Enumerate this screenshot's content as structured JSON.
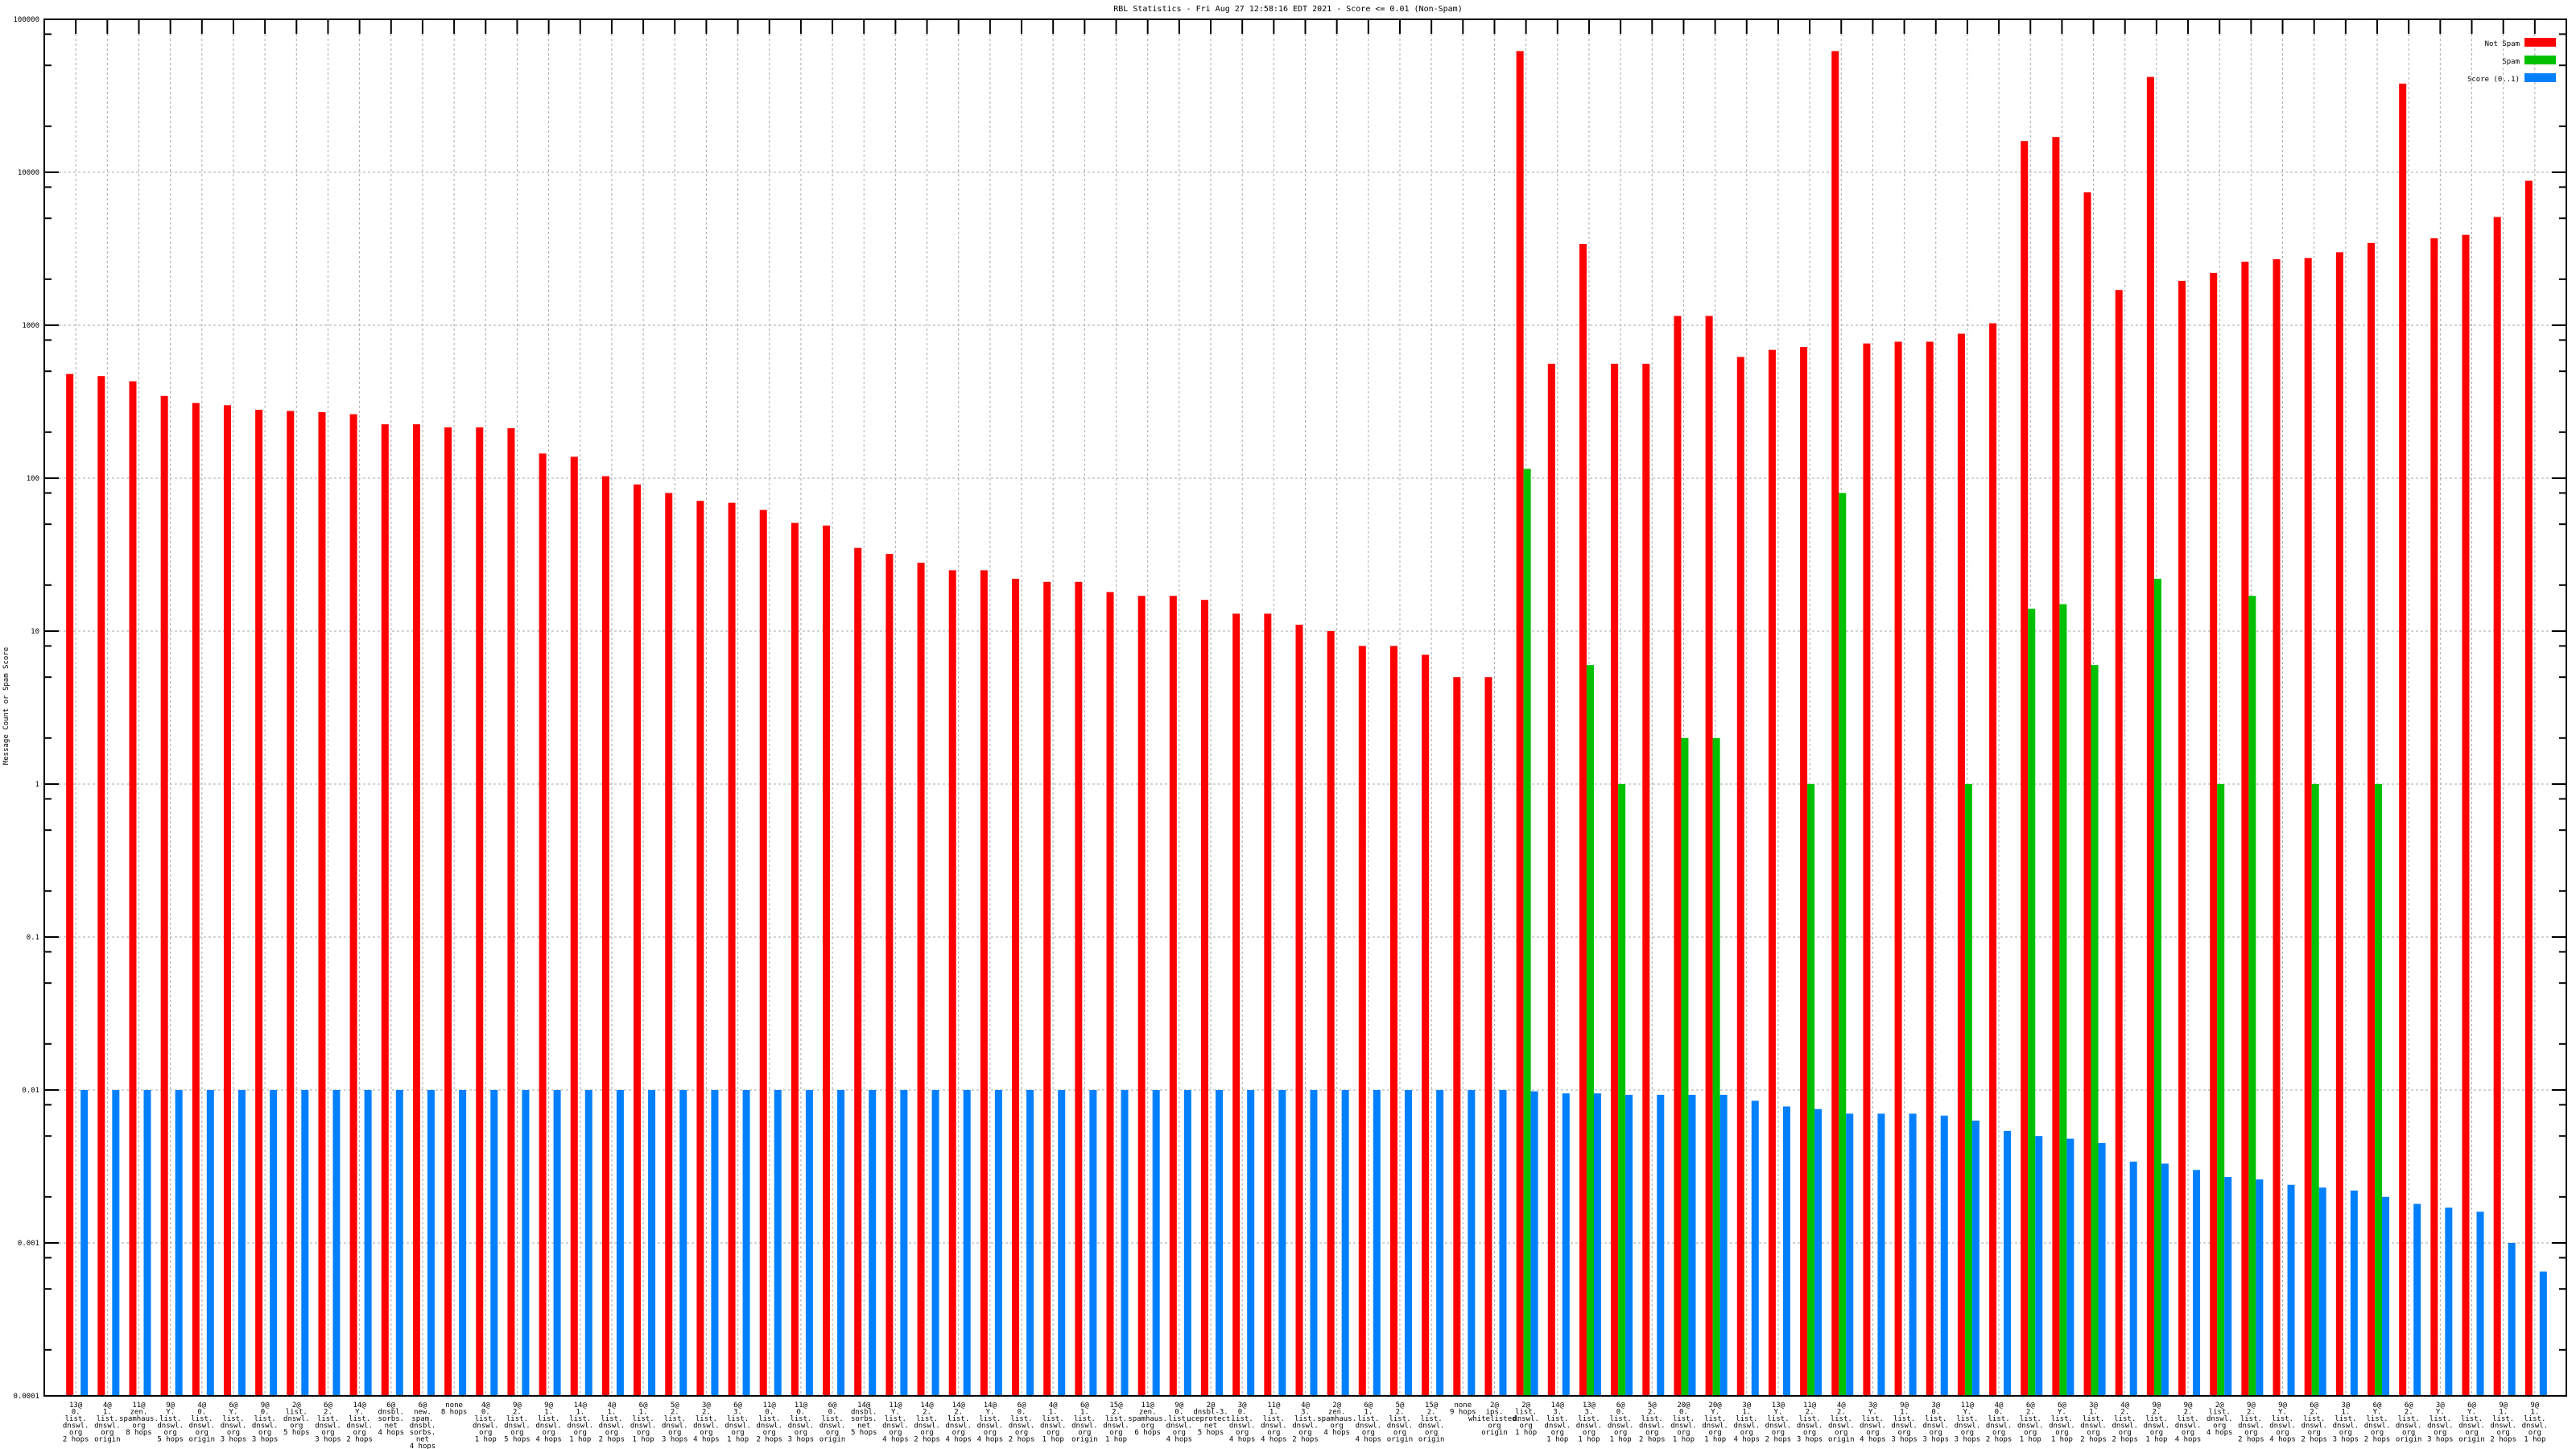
{
  "chart_data": {
    "type": "bar",
    "title": "RBL Statistics - Fri Aug 27 12:58:16 EDT 2021 - Score <= 0.01 (Non-Spam)",
    "xlabel": "",
    "ylabel": "Message Count or Spam Score",
    "yscale": "log",
    "ylim": [
      0.0001,
      100000
    ],
    "ytick_labels": [
      "0.0001",
      "0.001",
      "0.01",
      "0.1",
      "1",
      "10",
      "100",
      "1000",
      "10000",
      "100000"
    ],
    "grid": true,
    "legend_position": "top-right",
    "colors": {
      "Not Spam": "#ff0000",
      "Spam": "#00c000",
      "Score (0..1)": "#0080ff"
    },
    "categories": [
      [
        "13@",
        "0.",
        "list.",
        "dnswl.",
        "org",
        "2 hops"
      ],
      [
        "4@",
        "1.",
        "list.",
        "dnswl.",
        "org",
        "origin"
      ],
      [
        "11@",
        "zen.",
        "spamhaus.",
        "org",
        "8 hops"
      ],
      [
        "9@",
        "Y.",
        "list.",
        "dnswl.",
        "org",
        "5 hops"
      ],
      [
        "4@",
        "0.",
        "list.",
        "dnswl.",
        "org",
        "origin"
      ],
      [
        "6@",
        "Y.",
        "list.",
        "dnswl.",
        "org",
        "3 hops"
      ],
      [
        "9@",
        "0.",
        "list.",
        "dnswl.",
        "org",
        "3 hops"
      ],
      [
        "2@",
        "list.",
        "dnswl.",
        "org",
        "5 hops"
      ],
      [
        "6@",
        "2.",
        "list.",
        "dnswl.",
        "org",
        "3 hops"
      ],
      [
        "14@",
        "Y.",
        "list.",
        "dnswl.",
        "org",
        "2 hops"
      ],
      [
        "6@",
        "dnsbl.",
        "sorbs.",
        "net",
        "4 hops"
      ],
      [
        "6@",
        "new.",
        "spam.",
        "dnsbl.",
        "sorbs.",
        "net",
        "4 hops"
      ],
      [
        "none",
        "8 hops"
      ],
      [
        "4@",
        "0.",
        "list.",
        "dnswl.",
        "org",
        "1 hop"
      ],
      [
        "9@",
        "2.",
        "list.",
        "dnswl.",
        "org",
        "5 hops"
      ],
      [
        "9@",
        "1.",
        "list.",
        "dnswl.",
        "org",
        "4 hops"
      ],
      [
        "14@",
        "1.",
        "list.",
        "dnswl.",
        "org",
        "1 hop"
      ],
      [
        "4@",
        "1.",
        "list.",
        "dnswl.",
        "org",
        "2 hops"
      ],
      [
        "6@",
        "1.",
        "list.",
        "dnswl.",
        "org",
        "1 hop"
      ],
      [
        "5@",
        "2.",
        "list.",
        "dnswl.",
        "org",
        "3 hops"
      ],
      [
        "3@",
        "2.",
        "list.",
        "dnswl.",
        "org",
        "4 hops"
      ],
      [
        "6@",
        "3.",
        "list.",
        "dnswl.",
        "org",
        "1 hop"
      ],
      [
        "11@",
        "0.",
        "list.",
        "dnswl.",
        "org",
        "2 hops"
      ],
      [
        "11@",
        "0.",
        "list.",
        "dnswl.",
        "org",
        "3 hops"
      ],
      [
        "6@",
        "0.",
        "list.",
        "dnswl.",
        "org",
        "origin"
      ],
      [
        "14@",
        "dnsbl.",
        "sorbs.",
        "net",
        "5 hops"
      ],
      [
        "11@",
        "Y.",
        "list.",
        "dnswl.",
        "org",
        "4 hops"
      ],
      [
        "14@",
        "2.",
        "list.",
        "dnswl.",
        "org",
        "2 hops"
      ],
      [
        "14@",
        "2.",
        "list.",
        "dnswl.",
        "org",
        "4 hops"
      ],
      [
        "14@",
        "Y.",
        "list.",
        "dnswl.",
        "org",
        "4 hops"
      ],
      [
        "6@",
        "0.",
        "list.",
        "dnswl.",
        "org",
        "2 hops"
      ],
      [
        "4@",
        "1.",
        "list.",
        "dnswl.",
        "org",
        "1 hop"
      ],
      [
        "6@",
        "1.",
        "list.",
        "dnswl.",
        "org",
        "origin"
      ],
      [
        "15@",
        "2.",
        "list.",
        "dnswl.",
        "org",
        "1 hop"
      ],
      [
        "11@",
        "zen.",
        "spamhaus.",
        "org",
        "6 hops"
      ],
      [
        "9@",
        "0.",
        "list.",
        "dnswl.",
        "org",
        "4 hops"
      ],
      [
        "2@",
        "dnsbl-3.",
        "uceprotect.",
        "net",
        "5 hops"
      ],
      [
        "3@",
        "0.",
        "list.",
        "dnswl.",
        "org",
        "4 hops"
      ],
      [
        "11@",
        "1.",
        "list.",
        "dnswl.",
        "org",
        "4 hops"
      ],
      [
        "4@",
        "3.",
        "list.",
        "dnswl.",
        "org",
        "2 hops"
      ],
      [
        "2@",
        "zen.",
        "spamhaus.",
        "org",
        "4 hops"
      ],
      [
        "6@",
        "1.",
        "list.",
        "dnswl.",
        "org",
        "4 hops"
      ],
      [
        "5@",
        "2.",
        "list.",
        "dnswl.",
        "org",
        "origin"
      ],
      [
        "15@",
        "2.",
        "list.",
        "dnswl.",
        "org",
        "origin"
      ],
      [
        "none",
        "9 hops"
      ],
      [
        "2@",
        "ips.",
        "whitelisted.",
        "org",
        "origin"
      ],
      [
        "2@",
        "list.",
        "dnswl.",
        "org",
        "1 hop"
      ],
      [
        "14@",
        "3.",
        "list.",
        "dnswl.",
        "org",
        "1 hop"
      ],
      [
        "13@",
        "3.",
        "list.",
        "dnswl.",
        "org",
        "1 hop"
      ],
      [
        "6@",
        "0.",
        "list.",
        "dnswl.",
        "org",
        "1 hop"
      ],
      [
        "5@",
        "2.",
        "list.",
        "dnswl.",
        "org",
        "2 hops"
      ],
      [
        "20@",
        "0.",
        "list.",
        "dnswl.",
        "org",
        "1 hop"
      ],
      [
        "20@",
        "Y.",
        "list.",
        "dnswl.",
        "org",
        "1 hop"
      ],
      [
        "3@",
        "1.",
        "list.",
        "dnswl.",
        "org",
        "4 hops"
      ],
      [
        "13@",
        "Y.",
        "list.",
        "dnswl.",
        "org",
        "2 hops"
      ],
      [
        "11@",
        "2.",
        "list.",
        "dnswl.",
        "org",
        "3 hops"
      ],
      [
        "4@",
        "2.",
        "list.",
        "dnswl.",
        "org",
        "origin"
      ],
      [
        "3@",
        "Y.",
        "list.",
        "dnswl.",
        "org",
        "4 hops"
      ],
      [
        "9@",
        "1.",
        "list.",
        "dnswl.",
        "org",
        "3 hops"
      ],
      [
        "3@",
        "0.",
        "list.",
        "dnswl.",
        "org",
        "3 hops"
      ],
      [
        "11@",
        "Y.",
        "list.",
        "dnswl.",
        "org",
        "3 hops"
      ],
      [
        "4@",
        "0.",
        "list.",
        "dnswl.",
        "org",
        "2 hops"
      ],
      [
        "6@",
        "2.",
        "list.",
        "dnswl.",
        "org",
        "1 hop"
      ],
      [
        "6@",
        "Y.",
        "list.",
        "dnswl.",
        "org",
        "1 hop"
      ],
      [
        "3@",
        "1.",
        "list.",
        "dnswl.",
        "org",
        "2 hops"
      ],
      [
        "4@",
        "2.",
        "list.",
        "dnswl.",
        "org",
        "2 hops"
      ],
      [
        "9@",
        "2.",
        "list.",
        "dnswl.",
        "org",
        "1 hop"
      ],
      [
        "9@",
        "2.",
        "list.",
        "dnswl.",
        "org",
        "4 hops"
      ],
      [
        "2@",
        "list.",
        "dnswl.",
        "org",
        "4 hops"
      ],
      [
        "9@",
        "2.",
        "list.",
        "dnswl.",
        "org",
        "2 hops"
      ],
      [
        "9@",
        "Y.",
        "list.",
        "dnswl.",
        "org",
        "4 hops"
      ],
      [
        "6@",
        "2.",
        "list.",
        "dnswl.",
        "org",
        "2 hops"
      ],
      [
        "3@",
        "1.",
        "list.",
        "dnswl.",
        "org",
        "3 hops"
      ],
      [
        "6@",
        "Y.",
        "list.",
        "dnswl.",
        "org",
        "2 hops"
      ],
      [
        "6@",
        "2.",
        "list.",
        "dnswl.",
        "org",
        "origin"
      ],
      [
        "3@",
        "Y.",
        "list.",
        "dnswl.",
        "org",
        "3 hops"
      ],
      [
        "6@",
        "Y.",
        "list.",
        "dnswl.",
        "org",
        "origin"
      ],
      [
        "9@",
        "1.",
        "list.",
        "dnswl.",
        "org",
        "2 hops"
      ],
      [
        "9@",
        "1.",
        "list.",
        "dnswl.",
        "org",
        "1 hop"
      ]
    ],
    "series": [
      {
        "name": "Not Spam",
        "values": [
          480,
          465,
          430,
          345,
          310,
          300,
          280,
          275,
          270,
          262,
          225,
          225,
          215,
          215,
          212,
          145,
          138,
          103,
          91,
          80,
          71,
          69,
          62,
          51,
          49,
          35,
          32,
          28,
          25,
          25,
          22,
          21,
          21,
          18,
          17,
          17,
          16,
          13,
          13,
          11,
          10,
          8,
          8,
          7,
          5,
          5,
          62000,
          560,
          3400,
          560,
          560,
          1150,
          1150,
          620,
          690,
          720,
          62000,
          760,
          780,
          780,
          880,
          1030,
          16000,
          17000,
          7400,
          1700,
          42000,
          1950,
          2200,
          2600,
          2700,
          2750,
          3000,
          3450,
          38000,
          3700,
          3900,
          5100,
          8800
        ]
      },
      {
        "name": "Spam",
        "values": [
          0,
          0,
          0,
          0,
          0,
          0,
          0,
          0,
          0,
          0,
          0,
          0,
          0,
          0,
          0,
          0,
          0,
          0,
          0,
          0,
          0,
          0,
          0,
          0,
          0,
          0,
          0,
          0,
          0,
          0,
          0,
          0,
          0,
          0,
          0,
          0,
          0,
          0,
          0,
          0,
          0,
          0,
          0,
          0,
          0,
          0,
          115,
          0,
          6,
          1,
          0,
          2,
          2,
          0,
          0,
          1,
          80,
          0,
          0,
          0,
          1,
          0,
          14,
          15,
          6,
          0,
          22,
          0,
          1,
          17,
          0,
          1,
          0,
          1,
          0,
          0,
          0,
          0,
          0
        ]
      },
      {
        "name": "Score (0..1)",
        "values": [
          0.01,
          0.01,
          0.01,
          0.01,
          0.01,
          0.01,
          0.01,
          0.01,
          0.01,
          0.01,
          0.01,
          0.01,
          0.01,
          0.01,
          0.01,
          0.01,
          0.01,
          0.01,
          0.01,
          0.01,
          0.01,
          0.01,
          0.01,
          0.01,
          0.01,
          0.01,
          0.01,
          0.01,
          0.01,
          0.01,
          0.01,
          0.01,
          0.01,
          0.01,
          0.01,
          0.01,
          0.01,
          0.01,
          0.01,
          0.01,
          0.01,
          0.01,
          0.01,
          0.01,
          0.01,
          0.01,
          0.0098,
          0.0095,
          0.0095,
          0.0093,
          0.0093,
          0.0093,
          0.0093,
          0.0085,
          0.0078,
          0.0075,
          0.007,
          0.007,
          0.007,
          0.0068,
          0.0063,
          0.0054,
          0.005,
          0.0048,
          0.0045,
          0.0034,
          0.0033,
          0.003,
          0.0027,
          0.0026,
          0.0024,
          0.0023,
          0.0022,
          0.002,
          0.0018,
          0.0017,
          0.0016,
          0.001,
          0.00065
        ]
      }
    ]
  }
}
